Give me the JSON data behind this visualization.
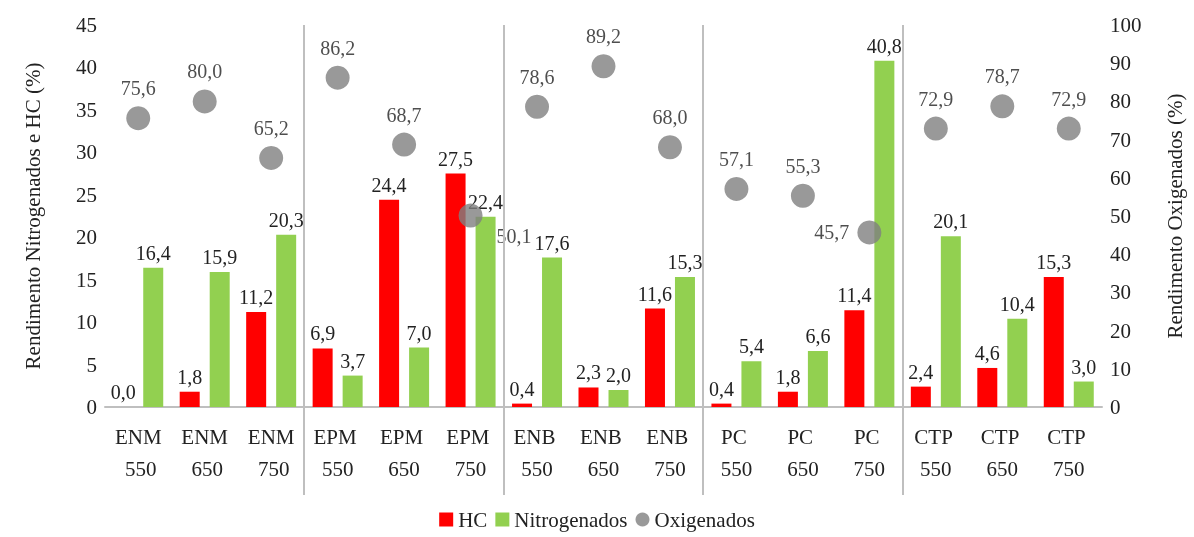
{
  "chart_data": {
    "type": "bar",
    "ylabel": "Rendimento Nitrogenados e HC (%)",
    "y2label": "Rendimento Oxigenados (%)",
    "categories": [
      "ENM 550",
      "ENM 650",
      "ENM 750",
      "EPM 550",
      "EPM 650",
      "EPM 750",
      "ENB 550",
      "ENB 650",
      "ENB 750",
      "PC 550",
      "PC 650",
      "PC 750",
      "CTP 550",
      "CTP 650",
      "CTP 750"
    ],
    "series": [
      {
        "name": "HC",
        "color": "#ff0000",
        "values": [
          0.0,
          1.8,
          11.2,
          6.9,
          24.4,
          27.5,
          0.4,
          2.3,
          11.6,
          0.4,
          1.8,
          11.4,
          2.4,
          4.6,
          15.3
        ],
        "value_labels": [
          "0,0",
          "1,8",
          "11,2",
          "6,9",
          "24,4",
          "27,5",
          "0,4",
          "2,3",
          "11,6",
          "0,4",
          "1,8",
          "11,4",
          "2,4",
          "4,6",
          "15,3"
        ]
      },
      {
        "name": "Nitrogenados",
        "color": "#92d050",
        "values": [
          16.4,
          15.9,
          20.3,
          3.7,
          7.0,
          22.4,
          17.6,
          2.0,
          15.3,
          5.4,
          6.6,
          40.8,
          20.1,
          10.4,
          3.0
        ],
        "value_labels": [
          "16,4",
          "15,9",
          "20,3",
          "3,7",
          "7,0",
          "22,4",
          "17,6",
          "2,0",
          "15,3",
          "5,4",
          "6,6",
          "40,8",
          "20,1",
          "10,4",
          "3,0"
        ]
      },
      {
        "name": "Oxigenados",
        "type": "scatter",
        "axis": "y2",
        "color": "#808080",
        "values": [
          75.6,
          80.0,
          65.2,
          86.2,
          68.7,
          50.1,
          78.6,
          89.2,
          68.0,
          57.1,
          55.3,
          45.7,
          72.9,
          78.7,
          72.9
        ],
        "value_labels": [
          "75,6",
          "80,0",
          "65,2",
          "86,2",
          "68,7",
          "50,1",
          "78,6",
          "89,2",
          "68,0",
          "57,1",
          "55,3",
          "45,7",
          "72,9",
          "78,7",
          "72,9"
        ]
      }
    ],
    "ylim": [
      0,
      45
    ],
    "yticks": [
      0,
      5,
      10,
      15,
      20,
      25,
      30,
      35,
      40,
      45
    ],
    "y2lim": [
      0,
      100
    ],
    "y2ticks": [
      0,
      10,
      20,
      30,
      40,
      50,
      60,
      70,
      80,
      90,
      100
    ],
    "grid": false,
    "legend": "bottom",
    "marker": "circle"
  }
}
